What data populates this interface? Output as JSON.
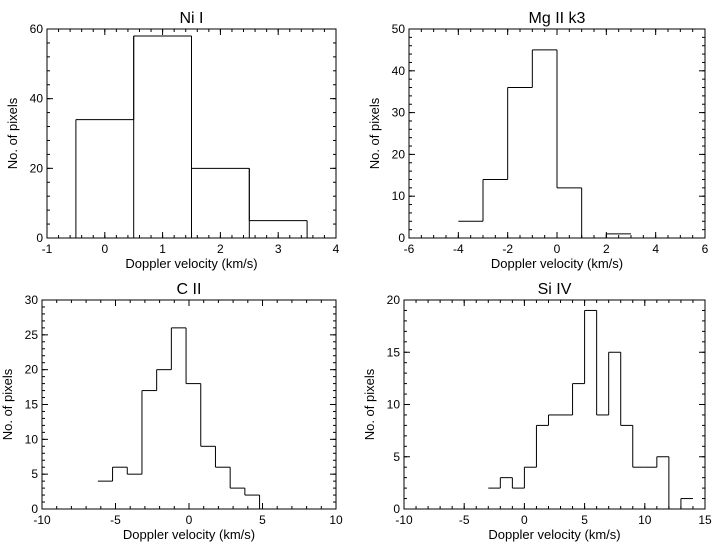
{
  "chart_data": [
    {
      "type": "histogram",
      "title": "Ni I",
      "xlabel": "Doppler velocity (km/s)",
      "ylabel": "No. of pixels",
      "xlim": [
        -1,
        4
      ],
      "ylim": [
        0,
        60
      ],
      "xticks": [
        -1,
        0,
        1,
        2,
        3,
        4
      ],
      "yticks": [
        0,
        20,
        40,
        60
      ],
      "bin_edges": [
        -0.5,
        0.5,
        1.5,
        2.5,
        3.5
      ],
      "counts": [
        34,
        58,
        20,
        5
      ],
      "grid": false
    },
    {
      "type": "histogram",
      "title": "Mg II k3",
      "xlabel": "Doppler velocity (km/s)",
      "ylabel": "No. of pixels",
      "xlim": [
        -6,
        6
      ],
      "ylim": [
        0,
        50
      ],
      "xticks": [
        -6,
        -4,
        -2,
        0,
        2,
        4,
        6
      ],
      "yticks": [
        0,
        10,
        20,
        30,
        40,
        50
      ],
      "bin_edges": [
        -4,
        -3,
        -2,
        -1,
        0,
        1,
        2,
        3
      ],
      "counts": [
        4,
        14,
        36,
        45,
        12,
        0,
        1
      ],
      "grid": false
    },
    {
      "type": "histogram",
      "title": "C II",
      "xlabel": "Doppler velocity (km/s)",
      "ylabel": "No. of pixels",
      "xlim": [
        -10,
        10
      ],
      "ylim": [
        0,
        30
      ],
      "xticks": [
        -10,
        -5,
        0,
        5,
        10
      ],
      "yticks": [
        0,
        5,
        10,
        15,
        20,
        25,
        30
      ],
      "bin_edges": [
        -6.2,
        -5.2,
        -4.2,
        -3.2,
        -2.2,
        -1.2,
        -0.2,
        0.8,
        1.8,
        2.8,
        3.8,
        4.8,
        5.8,
        6.8,
        7.8,
        8.8,
        9.8
      ],
      "counts": [
        4,
        6,
        5,
        17,
        20,
        26,
        18,
        9,
        6,
        3,
        2,
        0,
        0,
        0,
        0,
        0
      ],
      "grid": false
    },
    {
      "type": "histogram",
      "title": "Si IV",
      "xlabel": "Doppler velocity (km/s)",
      "ylabel": "No. of pixels",
      "xlim": [
        -10,
        15
      ],
      "ylim": [
        0,
        20
      ],
      "xticks": [
        -10,
        -5,
        0,
        5,
        10,
        15
      ],
      "yticks": [
        0,
        5,
        10,
        15,
        20
      ],
      "bin_edges": [
        -3,
        -2,
        -1,
        0,
        1,
        2,
        3,
        4,
        5,
        6,
        7,
        8,
        9,
        10,
        11,
        12,
        13,
        14
      ],
      "counts": [
        2,
        3,
        2,
        4,
        8,
        9,
        9,
        12,
        19,
        9,
        15,
        8,
        4,
        4,
        5,
        0,
        1
      ],
      "grid": false
    }
  ]
}
